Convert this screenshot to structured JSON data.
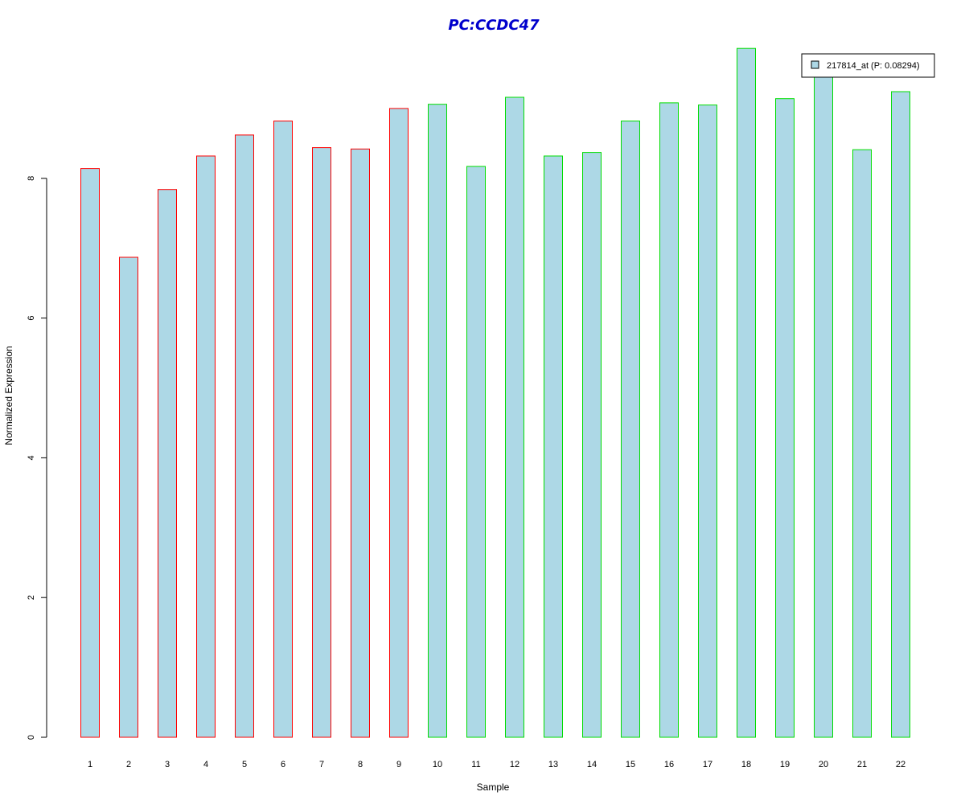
{
  "chart_data": {
    "type": "bar",
    "title": "PC:CCDC47",
    "xlabel": "Sample",
    "ylabel": "Normalized Expression",
    "categories": [
      "1",
      "2",
      "3",
      "4",
      "5",
      "6",
      "7",
      "8",
      "9",
      "10",
      "11",
      "12",
      "13",
      "14",
      "15",
      "16",
      "17",
      "18",
      "19",
      "20",
      "21",
      "22"
    ],
    "series": [
      {
        "name": "217814_at (P: 0.08294)",
        "values": [
          8.14,
          6.87,
          7.84,
          8.32,
          8.62,
          8.82,
          8.44,
          8.42,
          9.0,
          9.06,
          8.17,
          9.16,
          8.32,
          8.37,
          8.82,
          9.08,
          9.05,
          9.86,
          9.14,
          9.52,
          8.41,
          9.24
        ]
      }
    ],
    "group_colors": [
      "#ff0000",
      "#ff0000",
      "#ff0000",
      "#ff0000",
      "#ff0000",
      "#ff0000",
      "#ff0000",
      "#ff0000",
      "#ff0000",
      "#00dd00",
      "#00dd00",
      "#00dd00",
      "#00dd00",
      "#00dd00",
      "#00dd00",
      "#00dd00",
      "#00dd00",
      "#00dd00",
      "#00dd00",
      "#00dd00",
      "#00dd00",
      "#00dd00"
    ],
    "bar_fill": "#add8e6",
    "title_color": "#0000cc",
    "yticks": [
      0,
      2,
      4,
      6,
      8
    ],
    "ylim": [
      0,
      9.86
    ],
    "grid": false,
    "legend_position": "top-right"
  }
}
